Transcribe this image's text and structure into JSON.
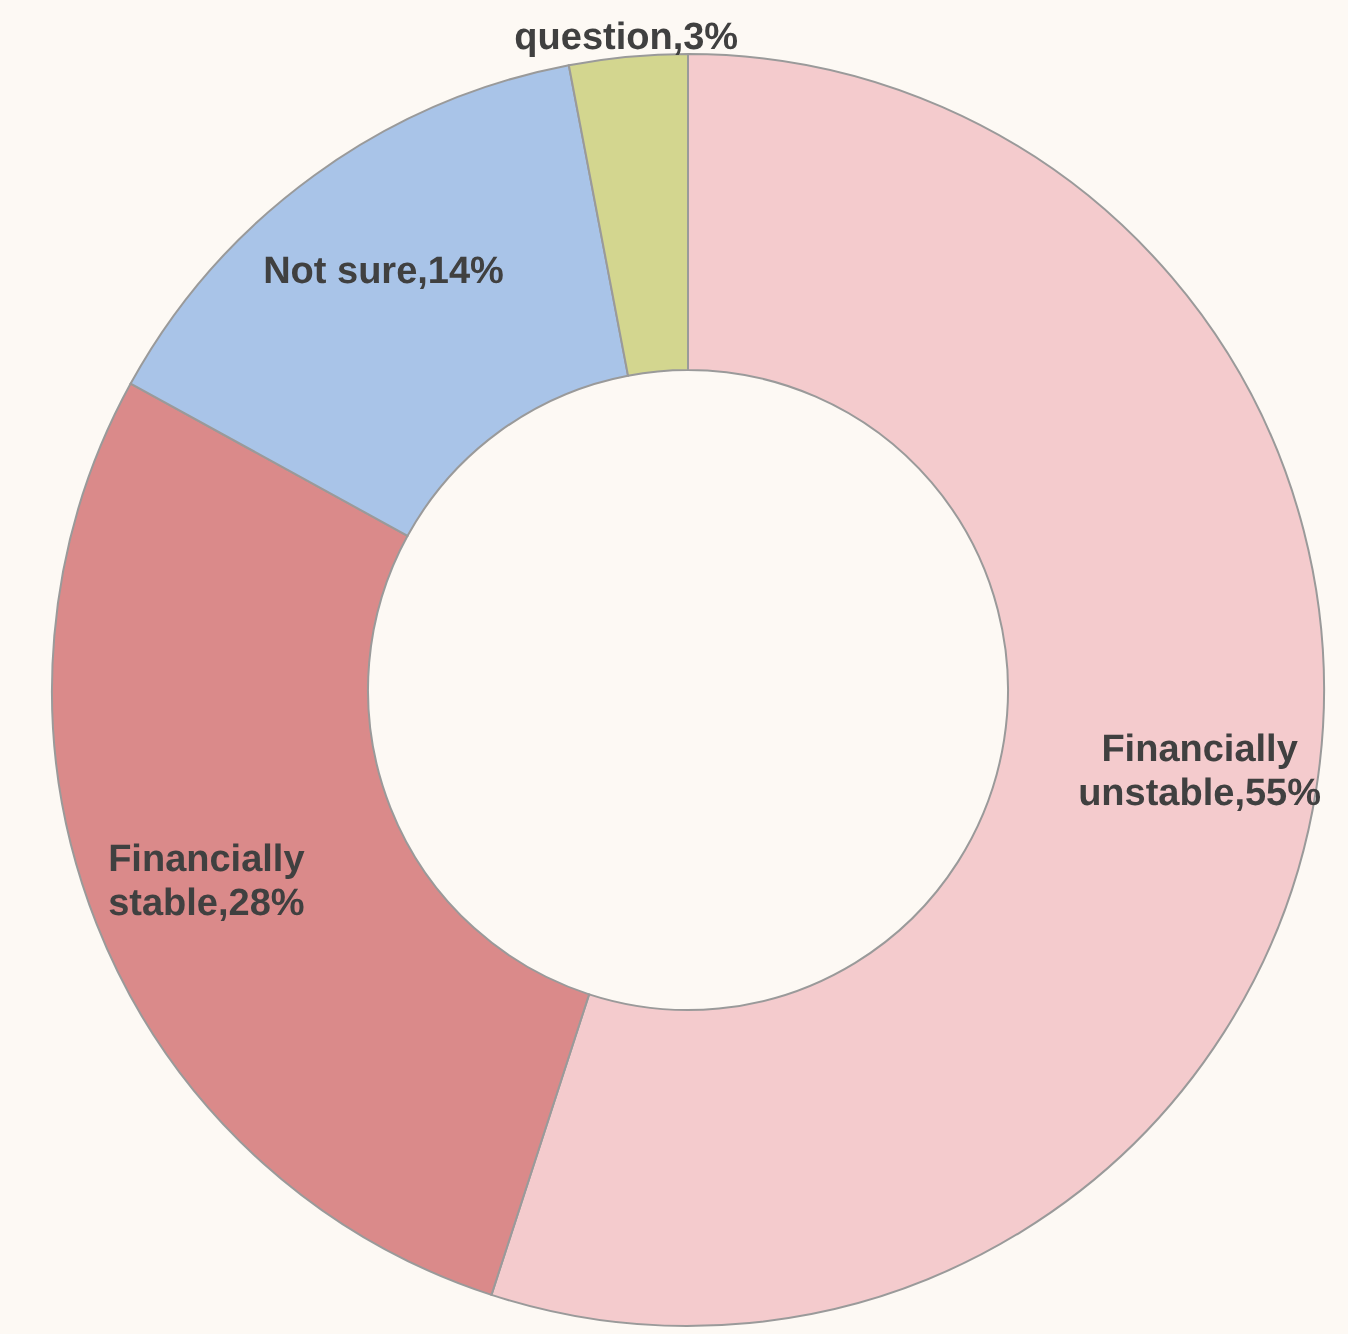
{
  "chart_data": {
    "type": "donut",
    "categories": [
      "Financially unstable",
      "Financially stable",
      "Not sure",
      "question"
    ],
    "values": [
      55,
      28,
      14,
      3
    ],
    "value_labels": [
      "55%",
      "28%",
      "14%",
      "3%"
    ],
    "colors": [
      "#f4cbcd",
      "#da8a8a",
      "#a9c4e8",
      "#d3d68f"
    ],
    "legend": false
  }
}
